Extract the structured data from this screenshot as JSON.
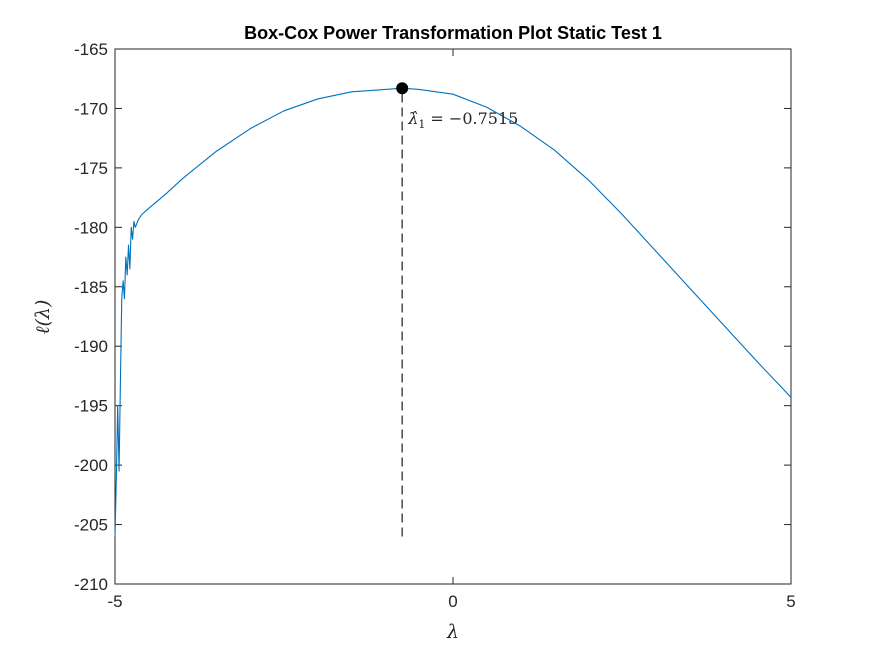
{
  "chart_data": {
    "type": "line",
    "title": "Box-Cox Power Transformation Plot Static Test 1",
    "xlabel": "λ",
    "ylabel": "ℓ(λ)",
    "xlim": [
      -5,
      5
    ],
    "ylim": [
      -210,
      -165
    ],
    "xticks": [
      -5,
      0,
      5
    ],
    "xtick_labels": [
      "-5",
      "0",
      "5"
    ],
    "yticks": [
      -210,
      -205,
      -200,
      -195,
      -190,
      -185,
      -180,
      -175,
      -170,
      -165
    ],
    "ytick_labels": [
      "-210",
      "-205",
      "-200",
      "-195",
      "-190",
      "-185",
      "-180",
      "-175",
      "-170",
      "-165"
    ],
    "grid": false,
    "box": true,
    "series": [
      {
        "color": "#0072BD",
        "x": [
          -5.0,
          -4.98,
          -4.96,
          -4.94,
          -4.92,
          -4.9,
          -4.88,
          -4.86,
          -4.84,
          -4.82,
          -4.8,
          -4.78,
          -4.76,
          -4.74,
          -4.72,
          -4.7,
          -4.65,
          -4.6,
          -4.5,
          -4.25,
          -4.0,
          -3.5,
          -3.0,
          -2.5,
          -2.0,
          -1.5,
          -1.0,
          -0.7515,
          -0.5,
          0.0,
          0.5,
          1.0,
          1.5,
          2.0,
          2.5,
          3.0,
          3.5,
          4.0,
          4.5,
          5.0
        ],
        "y": [
          -206.0,
          -201.0,
          -195.0,
          -200.5,
          -193.0,
          -186.0,
          -184.5,
          -186.0,
          -182.5,
          -184.0,
          -181.5,
          -183.5,
          -180.0,
          -181.0,
          -179.5,
          -180.0,
          -179.3,
          -178.9,
          -178.4,
          -177.2,
          -175.9,
          -173.6,
          -171.7,
          -170.2,
          -169.2,
          -168.6,
          -168.4,
          -168.3,
          -168.4,
          -168.8,
          -169.9,
          -171.5,
          -173.5,
          -176.0,
          -178.9,
          -182.0,
          -185.1,
          -188.2,
          -191.3,
          -194.3
        ]
      }
    ],
    "vline": {
      "x": -0.7515,
      "y_from": -206.0,
      "y_to": -168.3,
      "style": "dashed",
      "color": "#555555"
    },
    "marker": {
      "x": -0.7515,
      "y": -168.3,
      "color": "#000000"
    },
    "annotation": {
      "symbol": "λ̂",
      "subscript": "1",
      "equals": " = −0.7515",
      "x": -0.7515,
      "y": -168.3
    }
  }
}
